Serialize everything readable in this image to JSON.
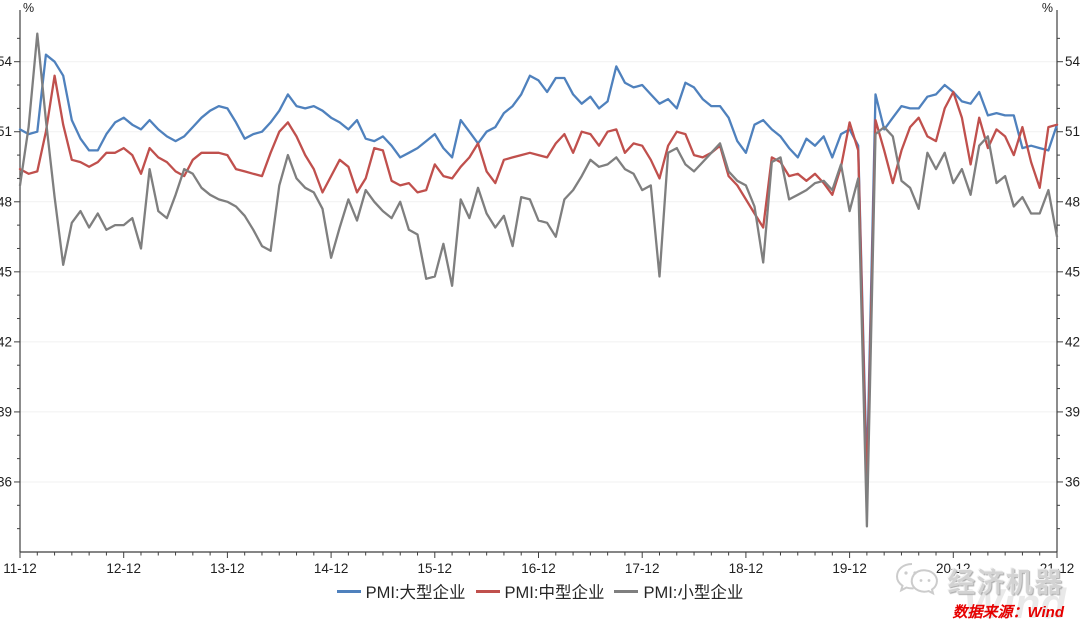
{
  "chart_data": {
    "type": "line",
    "title": "",
    "unit": "%",
    "x_start": "2011-12",
    "x_end": "2021-12",
    "x_tick_labels": [
      "11-12",
      "12-12",
      "13-12",
      "14-12",
      "15-12",
      "16-12",
      "17-12",
      "18-12",
      "19-12",
      "20-12",
      "21-12"
    ],
    "months_per_tick": 12,
    "ylim": [
      33,
      56
    ],
    "yticks": [
      36,
      39,
      42,
      45,
      48,
      51,
      54
    ],
    "grid": true,
    "legend_position": "bottom",
    "series": [
      {
        "name": "PMI:大型企业",
        "color": "#4f81bd",
        "values": [
          51.1,
          50.9,
          51.0,
          54.3,
          54.0,
          53.4,
          51.5,
          50.7,
          50.2,
          50.2,
          50.9,
          51.4,
          51.6,
          51.3,
          51.1,
          51.5,
          51.1,
          50.8,
          50.6,
          50.8,
          51.2,
          51.6,
          51.9,
          52.1,
          52.0,
          51.4,
          50.7,
          50.9,
          51.0,
          51.4,
          51.9,
          52.6,
          52.1,
          52.0,
          52.1,
          51.9,
          51.6,
          51.4,
          51.1,
          51.5,
          50.7,
          50.6,
          50.8,
          50.4,
          49.9,
          50.1,
          50.3,
          50.6,
          50.9,
          50.3,
          49.9,
          51.5,
          51.0,
          50.5,
          51.0,
          51.2,
          51.8,
          52.1,
          52.6,
          53.4,
          53.2,
          52.7,
          53.3,
          53.3,
          52.6,
          52.2,
          52.5,
          52.0,
          52.3,
          53.8,
          53.1,
          52.9,
          53.0,
          52.6,
          52.2,
          52.4,
          52.0,
          53.1,
          52.9,
          52.4,
          52.1,
          52.1,
          51.6,
          50.6,
          50.1,
          51.3,
          51.5,
          51.1,
          50.8,
          50.3,
          49.9,
          50.7,
          50.4,
          50.8,
          49.9,
          50.9,
          51.1,
          50.4,
          36.3,
          52.6,
          51.1,
          51.6,
          52.1,
          52.0,
          52.0,
          52.5,
          52.6,
          53.0,
          52.7,
          52.3,
          52.2,
          52.7,
          51.7,
          51.8,
          51.7,
          51.7,
          50.3,
          50.4,
          50.3,
          50.2,
          51.3
        ]
      },
      {
        "name": "PMI:中型企业",
        "color": "#c0504d",
        "values": [
          49.4,
          49.2,
          49.3,
          51.0,
          53.4,
          51.3,
          49.8,
          49.7,
          49.5,
          49.7,
          50.1,
          50.1,
          50.3,
          50.0,
          49.2,
          50.3,
          49.9,
          49.7,
          49.3,
          49.1,
          49.8,
          50.1,
          50.1,
          50.1,
          50.0,
          49.4,
          49.3,
          49.2,
          49.1,
          50.1,
          51.0,
          51.4,
          50.8,
          50.0,
          49.4,
          48.4,
          49.1,
          49.8,
          49.5,
          48.4,
          49.0,
          50.3,
          50.2,
          48.9,
          48.7,
          48.8,
          48.4,
          48.5,
          49.6,
          49.1,
          49.0,
          49.5,
          49.9,
          50.5,
          49.3,
          48.8,
          49.8,
          49.9,
          50.0,
          50.1,
          50.0,
          49.9,
          50.5,
          50.9,
          50.1,
          51.0,
          50.9,
          50.4,
          51.0,
          51.1,
          50.1,
          50.5,
          50.4,
          49.8,
          49.0,
          50.4,
          51.0,
          50.9,
          50.0,
          49.9,
          50.1,
          50.4,
          49.1,
          48.7,
          48.1,
          47.5,
          46.9,
          49.9,
          49.7,
          49.1,
          49.2,
          48.9,
          49.2,
          48.8,
          48.3,
          49.5,
          51.4,
          50.2,
          35.5,
          51.5,
          50.2,
          48.8,
          50.2,
          51.2,
          51.6,
          50.8,
          50.6,
          52.0,
          52.7,
          51.6,
          49.6,
          51.6,
          50.3,
          51.1,
          50.8,
          50.0,
          51.2,
          49.7,
          48.6,
          51.2,
          51.3
        ]
      },
      {
        "name": "PMI:小型企业",
        "color": "#7f7f7f",
        "values": [
          48.7,
          51.2,
          55.2,
          51.5,
          48.2,
          45.3,
          47.1,
          47.6,
          46.9,
          47.5,
          46.8,
          47.0,
          47.0,
          47.3,
          46.0,
          49.4,
          47.6,
          47.3,
          48.3,
          49.4,
          49.2,
          48.6,
          48.3,
          48.1,
          48.0,
          47.8,
          47.4,
          46.8,
          46.1,
          45.9,
          48.7,
          50.0,
          49.0,
          48.6,
          48.4,
          47.7,
          45.6,
          46.9,
          48.1,
          47.2,
          48.5,
          48.0,
          47.6,
          47.3,
          48.0,
          46.8,
          46.6,
          44.7,
          44.8,
          46.2,
          44.4,
          48.1,
          47.3,
          48.6,
          47.5,
          46.9,
          47.4,
          46.1,
          48.2,
          48.1,
          47.2,
          47.1,
          46.5,
          48.1,
          48.5,
          49.1,
          49.8,
          49.5,
          49.6,
          49.9,
          49.4,
          49.2,
          48.5,
          48.7,
          44.8,
          50.1,
          50.3,
          49.6,
          49.3,
          49.7,
          50.1,
          50.5,
          49.3,
          48.9,
          48.7,
          47.8,
          45.4,
          49.7,
          49.9,
          48.1,
          48.3,
          48.5,
          48.8,
          48.9,
          48.5,
          49.6,
          47.6,
          49.0,
          34.1,
          50.9,
          51.2,
          50.8,
          48.9,
          48.6,
          47.7,
          50.1,
          49.4,
          50.1,
          48.8,
          49.4,
          48.3,
          50.4,
          50.8,
          48.8,
          49.1,
          47.8,
          48.2,
          47.5,
          47.5,
          48.5,
          46.5
        ]
      }
    ]
  },
  "legend": {
    "items": [
      "PMI:大型企业",
      "PMI:中型企业",
      "PMI:小型企业"
    ]
  },
  "footer": {
    "source_label": "数据来源：Wind",
    "watermark_text": "经济机器",
    "watermark_brand": "Wind"
  },
  "style": {
    "axis_color": "#3f3f3f",
    "tick_label_color": "#1f1f1f",
    "grid_color": "#f1f1f1",
    "source_color": "#e60000"
  }
}
